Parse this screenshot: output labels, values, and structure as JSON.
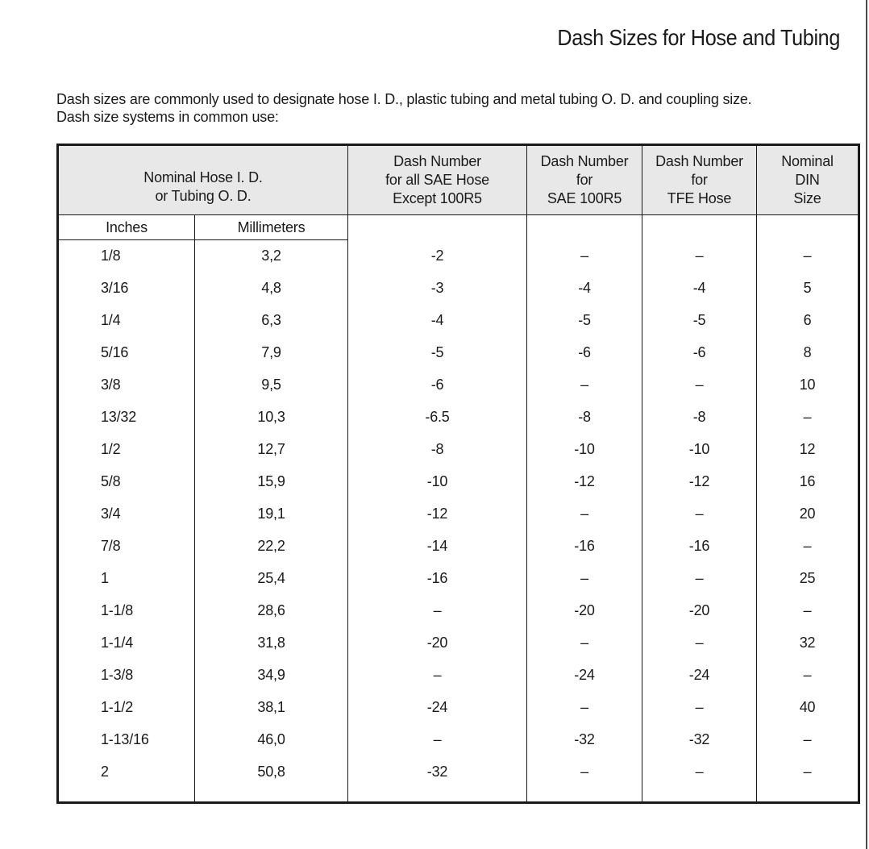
{
  "page": {
    "title": "Dash Sizes for Hose and Tubing",
    "intro_line1": "Dash sizes are commonly used to designate hose I. D., plastic tubing and metal tubing O. D. and coupling size.",
    "intro_line2": "Dash size systems in common use:"
  },
  "colors": {
    "header_bg": "#e8e8e8",
    "table_border": "#1a1a1a",
    "text": "#1a1a1a",
    "page_edge": "#4a4a4a"
  },
  "table": {
    "header": {
      "nominal": {
        "line1": "Nominal Hose I. D.",
        "line2": "or Tubing O. D."
      },
      "sae_all": {
        "line1": "Dash Number",
        "line2": "for all SAE Hose",
        "line3": "Except 100R5"
      },
      "sae_100r5": {
        "line1": "Dash Number",
        "line2": "for",
        "line3": "SAE 100R5"
      },
      "tfe": {
        "line1": "Dash Number",
        "line2": "for",
        "line3": "TFE Hose"
      },
      "din": {
        "line1": "Nominal",
        "line2": "DIN",
        "line3": "Size"
      }
    },
    "subheader": {
      "inches": "Inches",
      "millimeters": "Millimeters"
    },
    "rows": [
      {
        "inches": "1/8",
        "mm": "3,2",
        "sae_all": "-2",
        "sae_100r5": "–",
        "tfe": "–",
        "din": "–"
      },
      {
        "inches": "3/16",
        "mm": "4,8",
        "sae_all": "-3",
        "sae_100r5": "-4",
        "tfe": "-4",
        "din": "5"
      },
      {
        "inches": "1/4",
        "mm": "6,3",
        "sae_all": "-4",
        "sae_100r5": "-5",
        "tfe": "-5",
        "din": "6"
      },
      {
        "inches": "5/16",
        "mm": "7,9",
        "sae_all": "-5",
        "sae_100r5": "-6",
        "tfe": "-6",
        "din": "8"
      },
      {
        "inches": "3/8",
        "mm": "9,5",
        "sae_all": "-6",
        "sae_100r5": "–",
        "tfe": "–",
        "din": "10"
      },
      {
        "inches": "13/32",
        "mm": "10,3",
        "sae_all": "-6.5",
        "sae_100r5": "-8",
        "tfe": "-8",
        "din": "–"
      },
      {
        "inches": "1/2",
        "mm": "12,7",
        "sae_all": "-8",
        "sae_100r5": "-10",
        "tfe": "-10",
        "din": "12"
      },
      {
        "inches": "5/8",
        "mm": "15,9",
        "sae_all": "-10",
        "sae_100r5": "-12",
        "tfe": "-12",
        "din": "16"
      },
      {
        "inches": "3/4",
        "mm": "19,1",
        "sae_all": "-12",
        "sae_100r5": "–",
        "tfe": "–",
        "din": "20"
      },
      {
        "inches": "7/8",
        "mm": "22,2",
        "sae_all": "-14",
        "sae_100r5": "-16",
        "tfe": "-16",
        "din": "–"
      },
      {
        "inches": "1",
        "mm": "25,4",
        "sae_all": "-16",
        "sae_100r5": "–",
        "tfe": "–",
        "din": "25"
      },
      {
        "inches": "1-1/8",
        "mm": "28,6",
        "sae_all": "–",
        "sae_100r5": "-20",
        "tfe": "-20",
        "din": "–"
      },
      {
        "inches": "1-1/4",
        "mm": "31,8",
        "sae_all": "-20",
        "sae_100r5": "–",
        "tfe": "–",
        "din": "32"
      },
      {
        "inches": "1-3/8",
        "mm": "34,9",
        "sae_all": "–",
        "sae_100r5": "-24",
        "tfe": "-24",
        "din": "–"
      },
      {
        "inches": "1-1/2",
        "mm": "38,1",
        "sae_all": "-24",
        "sae_100r5": "–",
        "tfe": "–",
        "din": "40"
      },
      {
        "inches": "1-13/16",
        "mm": "46,0",
        "sae_all": "–",
        "sae_100r5": "-32",
        "tfe": "-32",
        "din": "–"
      },
      {
        "inches": "2",
        "mm": "50,8",
        "sae_all": "-32",
        "sae_100r5": "–",
        "tfe": "–",
        "din": "–"
      }
    ]
  }
}
